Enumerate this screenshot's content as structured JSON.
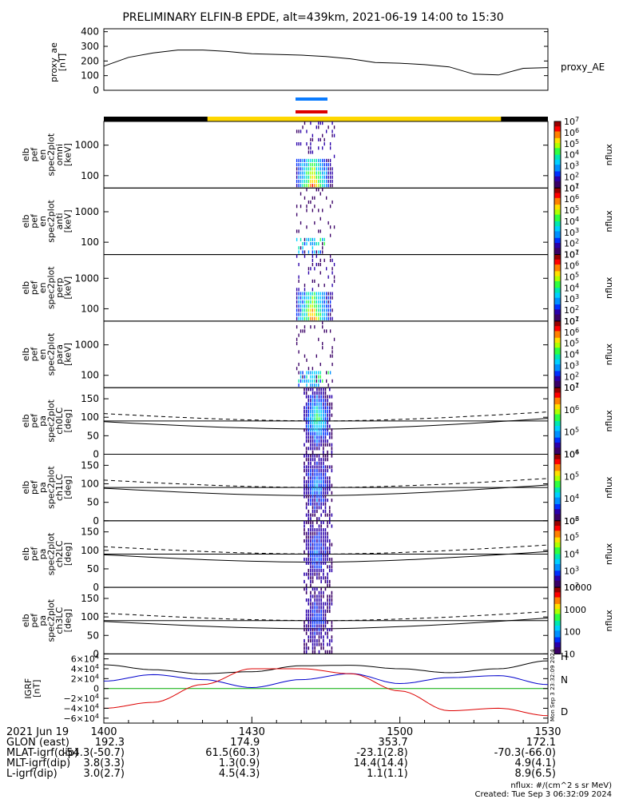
{
  "title": "PRELIMINARY ELFIN-B EPDE, alt=439km, 2021-06-19 14:00 to 15:30",
  "proxy_panel": {
    "ylabel": "proxy_ae\n[nT]",
    "legend": "proxy_AE",
    "yticks": [
      "400",
      "300",
      "200",
      "100",
      "0"
    ]
  },
  "energy_panels": [
    {
      "ylabel": "elb\npef\nen\nspec2plot\nomni\n[keV]",
      "yticks": [
        "1000",
        "100"
      ],
      "cbar_ticks": [
        "10^7",
        "10^6",
        "10^5",
        "10^4",
        "10^3",
        "10^2",
        "10^1"
      ],
      "cbar_label": "nflux"
    },
    {
      "ylabel": "elb\npef\nen\nspec2plot\nanti\n[keV]",
      "yticks": [
        "1000",
        "100"
      ],
      "cbar_ticks": [
        "10^7",
        "10^6",
        "10^5",
        "10^4",
        "10^3",
        "10^2",
        "10^1"
      ],
      "cbar_label": "nflux"
    },
    {
      "ylabel": "elb\npef\nen\nspec2plot\nperp\n[keV]",
      "yticks": [
        "1000",
        "100"
      ],
      "cbar_ticks": [
        "10^7",
        "10^6",
        "10^5",
        "10^4",
        "10^3",
        "10^2",
        "10^1"
      ],
      "cbar_label": "nflux"
    },
    {
      "ylabel": "elb\npef\nen\nspec2plot\npara\n[keV]",
      "yticks": [
        "1000",
        "100"
      ],
      "cbar_ticks": [
        "10^7",
        "10^6",
        "10^5",
        "10^4",
        "10^3",
        "10^2",
        "10^1"
      ],
      "cbar_label": "nflux"
    }
  ],
  "pa_panels": [
    {
      "ylabel": "elb\npef\npa\nspec2plot\nch0LC\n[deg]",
      "yticks": [
        "150",
        "100",
        "50",
        "0"
      ],
      "cbar_ticks": [
        "10^7",
        "10^6",
        "10^5",
        "10^4"
      ],
      "cbar_label": "nflux"
    },
    {
      "ylabel": "elb\npef\npa\nspec2plot\nch1LC\n[deg]",
      "yticks": [
        "150",
        "100",
        "50",
        "0"
      ],
      "cbar_ticks": [
        "10^6",
        "10^5",
        "10^4",
        "10^3"
      ],
      "cbar_label": "nflux"
    },
    {
      "ylabel": "elb\npef\npa\nspec2plot\nch2LC\n[deg]",
      "yticks": [
        "150",
        "100",
        "50",
        "0"
      ],
      "cbar_ticks": [
        "10^6",
        "10^5",
        "10^4",
        "10^3",
        "10^2"
      ],
      "cbar_label": "nflux"
    },
    {
      "ylabel": "elb\npef\npa\nspec2plot\nch3LC\n[deg]",
      "yticks": [
        "150",
        "100",
        "50",
        "0"
      ],
      "cbar_ticks": [
        "10000",
        "1000",
        "100",
        "10"
      ],
      "cbar_label": "nflux"
    }
  ],
  "igrf_panel": {
    "ylabel": "IGRF\n[nT]",
    "yticks": [
      "6×10^4",
      "4×10^4",
      "2×10^4",
      "0",
      "−2×10^4",
      "−4×10^4",
      "−6×10^4"
    ],
    "legend": [
      "H",
      "N",
      "D"
    ],
    "side_stamp": "Mon Sep  3 23:32:09 2024"
  },
  "time_axis": {
    "date_label": "2021 Jun 19",
    "ticks": [
      "1400",
      "1430",
      "1500",
      "1530"
    ]
  },
  "ephemeris": [
    {
      "label": "GLON (east)",
      "values": [
        "192.3",
        "174.9",
        "353.7",
        "172.1"
      ]
    },
    {
      "label": "MLAT-igrf(dip)",
      "values": [
        "-54.3(-50.7)",
        "61.5(60.3)",
        "-23.1(2.8)",
        "-70.3(-66.0)"
      ]
    },
    {
      "label": "MLT-igrf(dip)",
      "values": [
        "3.8(3.3)",
        "1.3(0.9)",
        "14.4(14.4)",
        "4.9(4.1)"
      ]
    },
    {
      "label": "L-igrf(dip)",
      "values": [
        "3.0(2.7)",
        "4.5(4.3)",
        "1.1(1.1)",
        "8.9(6.5)"
      ]
    }
  ],
  "footer": {
    "units": "nflux: #/(cm^2 s sr MeV)",
    "created": "Created: Tue Sep  3 06:32:09 2024"
  },
  "colors": {
    "H": "#000000",
    "N": "#0000cc",
    "D": "#dd0000",
    "Z": "#00aa00",
    "sun_bar": "#ffd700",
    "shadow_bar": "#000000",
    "blue_marker": "#0a7bff",
    "red_marker": "#dd0000"
  },
  "chart_data": [
    {
      "type": "line",
      "name": "proxy_AE",
      "x": [
        "14:00",
        "14:05",
        "14:10",
        "14:15",
        "14:20",
        "14:25",
        "14:30",
        "14:35",
        "14:40",
        "14:45",
        "14:50",
        "14:55",
        "15:00",
        "15:05",
        "15:10",
        "15:15",
        "15:20",
        "15:25",
        "15:30"
      ],
      "values": [
        165,
        225,
        255,
        275,
        275,
        265,
        250,
        245,
        240,
        230,
        215,
        190,
        185,
        175,
        160,
        110,
        105,
        150,
        155
      ],
      "ylim": [
        0,
        420
      ],
      "yticks": [
        0,
        100,
        200,
        300,
        400
      ]
    },
    {
      "type": "heatmap",
      "note_panels": [
        "omni",
        "anti",
        "perp",
        "para",
        "ch0LC",
        "ch1LC",
        "ch2LC",
        "ch3LC"
      ],
      "active_time_range": [
        "14:38",
        "14:46"
      ],
      "energy_ylim_keV": [
        60,
        6000
      ],
      "pitch_angle_ylim_deg": [
        0,
        180
      ]
    },
    {
      "type": "line",
      "series": [
        {
          "name": "H",
          "x_min": [
            0,
            10,
            20,
            30,
            40,
            50,
            60,
            70,
            80,
            90
          ],
          "values": [
            48000,
            38000,
            30000,
            34000,
            46000,
            47000,
            40000,
            32000,
            40000,
            56000
          ]
        },
        {
          "name": "N",
          "x_min": [
            0,
            10,
            20,
            30,
            40,
            50,
            60,
            70,
            80,
            90
          ],
          "values": [
            15000,
            28000,
            18000,
            2000,
            18000,
            30000,
            10000,
            22000,
            26000,
            8000
          ]
        },
        {
          "name": "Z",
          "x_min": [
            0,
            90
          ],
          "values": [
            0,
            0
          ]
        },
        {
          "name": "D",
          "x_min": [
            0,
            10,
            20,
            30,
            40,
            50,
            60,
            70,
            80,
            90
          ],
          "values": [
            -40000,
            -28000,
            8000,
            40000,
            40000,
            30000,
            -5000,
            -45000,
            -40000,
            -55000
          ]
        }
      ],
      "ylim": [
        -70000,
        70000
      ]
    }
  ]
}
